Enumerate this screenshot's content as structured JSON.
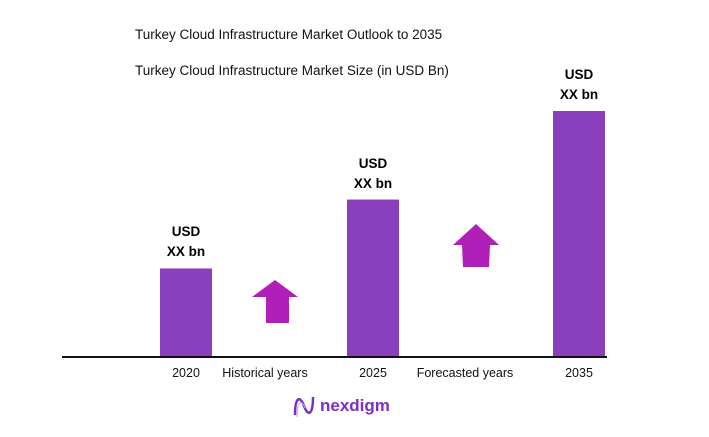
{
  "header": {
    "title": "Turkey Cloud Infrastructure Market Outlook to 2035",
    "subtitle": "Turkey Cloud Infrastructure Market Size (in USD Bn)"
  },
  "chart_data": {
    "type": "bar",
    "title": "Turkey Cloud Infrastructure Market Size (in USD Bn)",
    "categories": [
      "2020",
      "2025",
      "2035"
    ],
    "relative_values": [
      0.36,
      0.64,
      1.0
    ],
    "data_labels": [
      {
        "line1": "USD",
        "line2": "XX bn"
      },
      {
        "line1": "USD",
        "line2": "XX bn"
      },
      {
        "line1": "USD",
        "line2": "XX bn"
      }
    ],
    "period_labels": [
      "Historical years",
      "Forecasted years"
    ],
    "grid": false,
    "legend": "none",
    "colors": {
      "bar": "#8a3fbc",
      "arrow": "#b020b8",
      "axis": "#111111"
    }
  },
  "logo": {
    "text": "nexdigm"
  }
}
